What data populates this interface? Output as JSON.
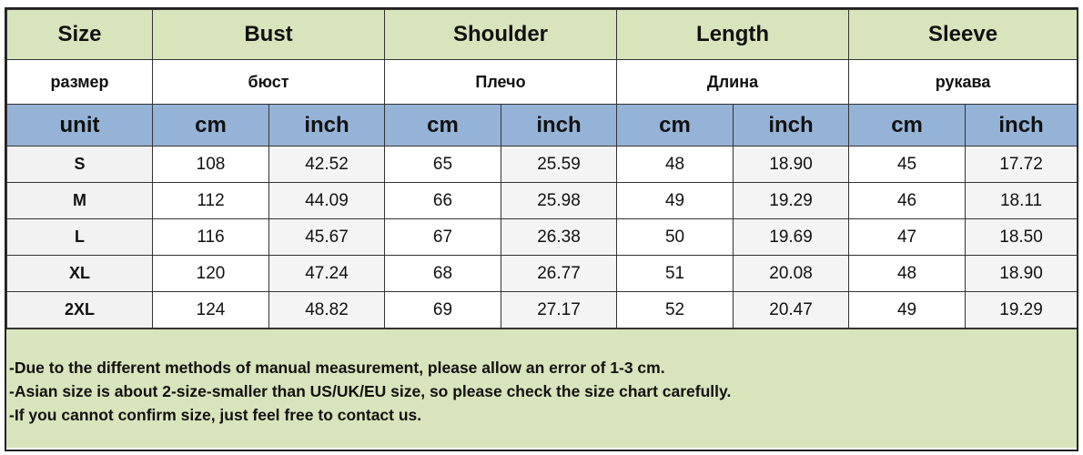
{
  "headers": {
    "size": "Size",
    "groups": [
      "Bust",
      "Shoulder",
      "Length",
      "Sleeve"
    ]
  },
  "russian": {
    "size": "размер",
    "groups": [
      "бюст",
      "Плечо",
      "Длина",
      "рукава"
    ]
  },
  "units": {
    "label": "unit",
    "cm": "cm",
    "inch": "inch"
  },
  "rows": [
    {
      "size": "S",
      "values": [
        "108",
        "42.52",
        "65",
        "25.59",
        "48",
        "18.90",
        "45",
        "17.72"
      ]
    },
    {
      "size": "M",
      "values": [
        "112",
        "44.09",
        "66",
        "25.98",
        "49",
        "19.29",
        "46",
        "18.11"
      ]
    },
    {
      "size": "L",
      "values": [
        "116",
        "45.67",
        "67",
        "26.38",
        "50",
        "19.69",
        "47",
        "18.50"
      ]
    },
    {
      "size": "XL",
      "values": [
        "120",
        "47.24",
        "68",
        "26.77",
        "51",
        "20.08",
        "48",
        "18.90"
      ]
    },
    {
      "size": "2XL",
      "values": [
        "124",
        "48.82",
        "69",
        "27.17",
        "52",
        "20.47",
        "49",
        "19.29"
      ]
    }
  ],
  "notes": [
    "-Due to the different methods of manual measurement, please allow an error of 1-3 cm.",
    "-Asian size is about  2-size-smaller than US/UK/EU size, so please check the size chart carefully.",
    "-If you cannot confirm size, just feel free to contact us."
  ],
  "colors": {
    "header_green": "#d8e4bc",
    "unit_blue": "#95b3d7"
  }
}
